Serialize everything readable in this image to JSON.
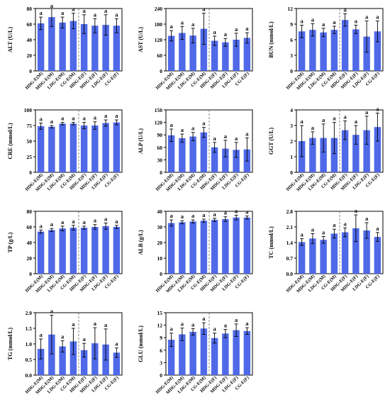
{
  "figure": {
    "groups": [
      "HDG-E(M)",
      "MDG-E(M)",
      "LDG-E(M)",
      "CG-E(M)",
      "HDG-E(F)",
      "MDG-E(F)",
      "LDG-E(F)",
      "CG-E(F)"
    ],
    "bar_color": "#4f69e8",
    "significance_label": "a"
  },
  "chart_data": [
    {
      "type": "bar",
      "ylabel": "ALT (U/L)",
      "ylim": [
        0,
        80
      ],
      "yticks": [
        0,
        20,
        40,
        60,
        80
      ],
      "values": [
        61,
        69,
        62,
        64,
        60,
        58,
        59,
        58
      ],
      "errors": [
        8,
        12,
        7,
        10,
        12,
        9,
        13,
        9
      ]
    },
    {
      "type": "bar",
      "ylabel": "AST (U/L)",
      "ylim": [
        0,
        240
      ],
      "yticks": [
        0,
        60,
        120,
        180,
        240
      ],
      "values": [
        135,
        146,
        136,
        162,
        116,
        110,
        120,
        127
      ],
      "errors": [
        20,
        25,
        28,
        60,
        18,
        15,
        25,
        20
      ]
    },
    {
      "type": "bar",
      "ylabel": "BUN (mmol/L)",
      "ylim": [
        0,
        12
      ],
      "yticks": [
        0,
        3,
        6,
        9,
        12
      ],
      "values": [
        7.6,
        7.9,
        7.4,
        7.9,
        9.8,
        8.0,
        6.6,
        7.6
      ],
      "errors": [
        1.2,
        1.2,
        0.8,
        0.7,
        1.2,
        0.8,
        3.0,
        2.0
      ]
    },
    {
      "type": "bar",
      "ylabel": "CRE (mmol/L)",
      "ylim": [
        0,
        100
      ],
      "yticks": [
        0,
        25,
        50,
        75,
        100
      ],
      "values": [
        74,
        73,
        78,
        78,
        75,
        75,
        79,
        80
      ],
      "errors": [
        5,
        2,
        2,
        2,
        5,
        6,
        5,
        4
      ]
    },
    {
      "type": "bar",
      "ylabel": "ALP (U/L)",
      "ylim": [
        0,
        150
      ],
      "yticks": [
        0,
        30,
        60,
        90,
        120,
        150
      ],
      "values": [
        89,
        82,
        86,
        96,
        60,
        57,
        54,
        55
      ],
      "errors": [
        15,
        10,
        10,
        12,
        12,
        20,
        18,
        28
      ]
    },
    {
      "type": "bar",
      "ylabel": "GGT (U/L)",
      "ylim": [
        0,
        4
      ],
      "yticks": [
        0,
        1,
        2,
        3,
        4
      ],
      "values": [
        2.0,
        2.2,
        2.2,
        2.2,
        2.7,
        2.4,
        2.7,
        2.9
      ],
      "errors": [
        1.0,
        0.4,
        0.9,
        1.0,
        0.6,
        0.6,
        0.9,
        0.9
      ]
    },
    {
      "type": "bar",
      "ylabel": "TP (g/L)",
      "ylim": [
        0,
        80
      ],
      "yticks": [
        0,
        20,
        40,
        60,
        80
      ],
      "values": [
        54,
        56,
        58,
        59,
        59,
        60,
        61,
        60
      ],
      "errors": [
        2,
        2,
        3,
        3,
        2,
        3,
        4,
        2
      ]
    },
    {
      "type": "bar",
      "ylabel": "ALB (g/L)",
      "ylim": [
        0,
        40
      ],
      "yticks": [
        0,
        10,
        20,
        30,
        40
      ],
      "values": [
        32.5,
        33,
        33.5,
        34,
        34.5,
        35,
        36,
        36
      ],
      "errors": [
        2,
        1,
        1,
        1,
        1,
        1.5,
        1.5,
        1
      ]
    },
    {
      "type": "bar",
      "ylabel": "TC (mmol/L)",
      "ylim": [
        0,
        2.8
      ],
      "yticks": [
        0.0,
        0.7,
        1.4,
        2.1,
        2.8
      ],
      "values": [
        1.42,
        1.58,
        1.52,
        1.8,
        1.86,
        2.04,
        1.94,
        1.65
      ],
      "errors": [
        0.15,
        0.22,
        0.15,
        0.2,
        0.2,
        0.6,
        0.35,
        0.2
      ]
    },
    {
      "type": "bar",
      "ylabel": "TG (mmol/L)",
      "ylim": [
        0,
        2
      ],
      "yticks": [
        0.0,
        0.5,
        1.0,
        1.5,
        2.0
      ],
      "values": [
        0.84,
        1.3,
        0.92,
        1.08,
        0.8,
        1.02,
        0.98,
        0.72
      ],
      "errors": [
        0.32,
        0.62,
        0.18,
        0.42,
        0.22,
        0.5,
        0.5,
        0.15
      ]
    },
    {
      "type": "bar",
      "ylabel": "GLU (mmol/L)",
      "ylim": [
        0,
        15
      ],
      "yticks": [
        0,
        3,
        6,
        9,
        12,
        15
      ],
      "values": [
        8.5,
        9.8,
        10.4,
        11.2,
        8.9,
        10.0,
        10.8,
        10.6
      ],
      "errors": [
        1.6,
        1.5,
        0.8,
        1.4,
        1.2,
        1.0,
        1.5,
        0.8
      ]
    }
  ]
}
